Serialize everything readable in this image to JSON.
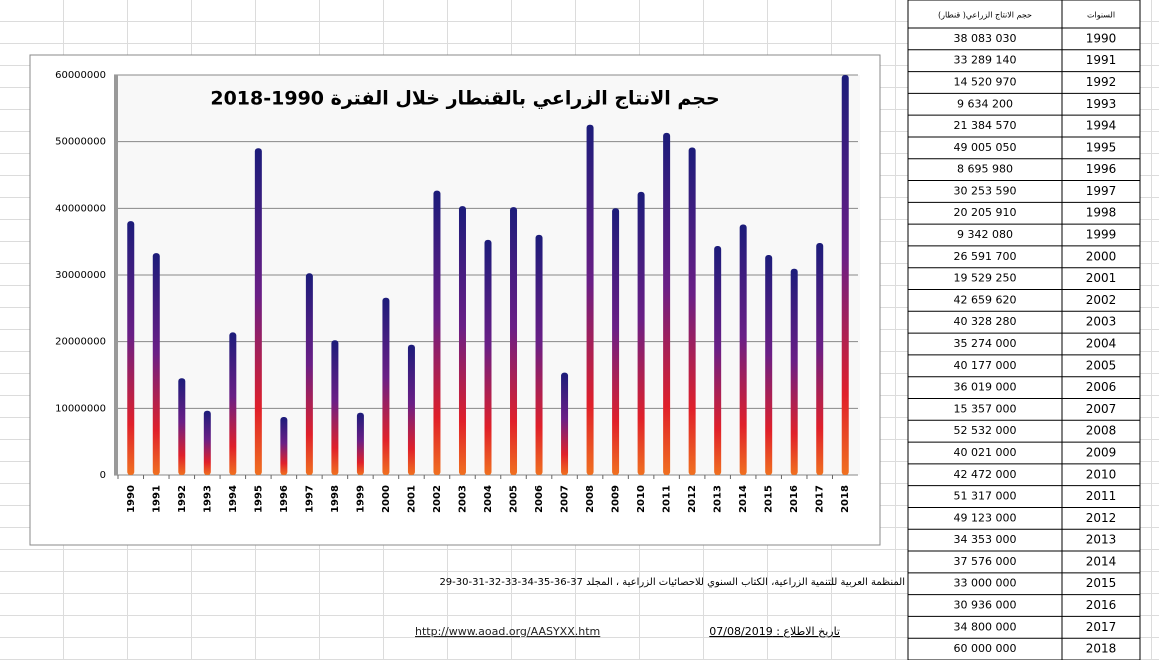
{
  "chart_data": {
    "type": "bar",
    "title": "حجم الانتاج الزراعي بالقنطار خلال الفترة 1990-2018",
    "categories": [
      "1990",
      "1991",
      "1992",
      "1993",
      "1994",
      "1995",
      "1996",
      "1997",
      "1998",
      "1999",
      "2000",
      "2001",
      "2002",
      "2003",
      "2004",
      "2005",
      "2006",
      "2007",
      "2008",
      "2009",
      "2010",
      "2011",
      "2012",
      "2013",
      "2014",
      "2015",
      "2016",
      "2017",
      "2018"
    ],
    "values": [
      38083030,
      33289140,
      14520970,
      9634200,
      21384570,
      49005050,
      8695980,
      30253590,
      20205910,
      9342080,
      26591700,
      19529250,
      42659620,
      40328280,
      35274000,
      40177000,
      36019000,
      15357000,
      52532000,
      40021000,
      42472000,
      51317000,
      49123000,
      34353000,
      37576000,
      33000000,
      30936000,
      34800000,
      60000000
    ],
    "ylim": [
      0,
      60000000
    ],
    "yticks": [
      0,
      10000000,
      20000000,
      30000000,
      40000000,
      50000000,
      60000000
    ],
    "grid": true
  },
  "table": {
    "header": [
      "حجم الانتاج الزراعي( قنطار)",
      "السنوات"
    ],
    "rows": [
      [
        "38 083 030",
        "1990"
      ],
      [
        "33 289 140",
        "1991"
      ],
      [
        "14 520 970",
        "1992"
      ],
      [
        "9 634 200",
        "1993"
      ],
      [
        "21 384 570",
        "1994"
      ],
      [
        "49 005 050",
        "1995"
      ],
      [
        "8 695 980",
        "1996"
      ],
      [
        "30 253 590",
        "1997"
      ],
      [
        "20 205 910",
        "1998"
      ],
      [
        "9 342 080",
        "1999"
      ],
      [
        "26 591 700",
        "2000"
      ],
      [
        "19 529 250",
        "2001"
      ],
      [
        "42 659 620",
        "2002"
      ],
      [
        "40 328 280",
        "2003"
      ],
      [
        "35 274 000",
        "2004"
      ],
      [
        "40 177 000",
        "2005"
      ],
      [
        "36 019 000",
        "2006"
      ],
      [
        "15 357 000",
        "2007"
      ],
      [
        "52 532 000",
        "2008"
      ],
      [
        "40 021 000",
        "2009"
      ],
      [
        "42 472 000",
        "2010"
      ],
      [
        "51 317 000",
        "2011"
      ],
      [
        "49 123 000",
        "2012"
      ],
      [
        "34 353 000",
        "2013"
      ],
      [
        "37 576 000",
        "2014"
      ],
      [
        "33 000 000",
        "2015"
      ],
      [
        "30 936 000",
        "2016"
      ],
      [
        "34 800 000",
        "2017"
      ],
      [
        "60 000 000",
        "2018"
      ]
    ]
  },
  "footer": {
    "source": "المنظمة العربية للتنمية الزراعية، الكتاب السنوي للاحصائيات الزراعية ، المجلد 37-36-35-34-33-32-31-30-29",
    "link": "http://www.aoad.org/AASYXX.htm",
    "date": "تاريخ الاطلاع : 07/08/2019"
  }
}
